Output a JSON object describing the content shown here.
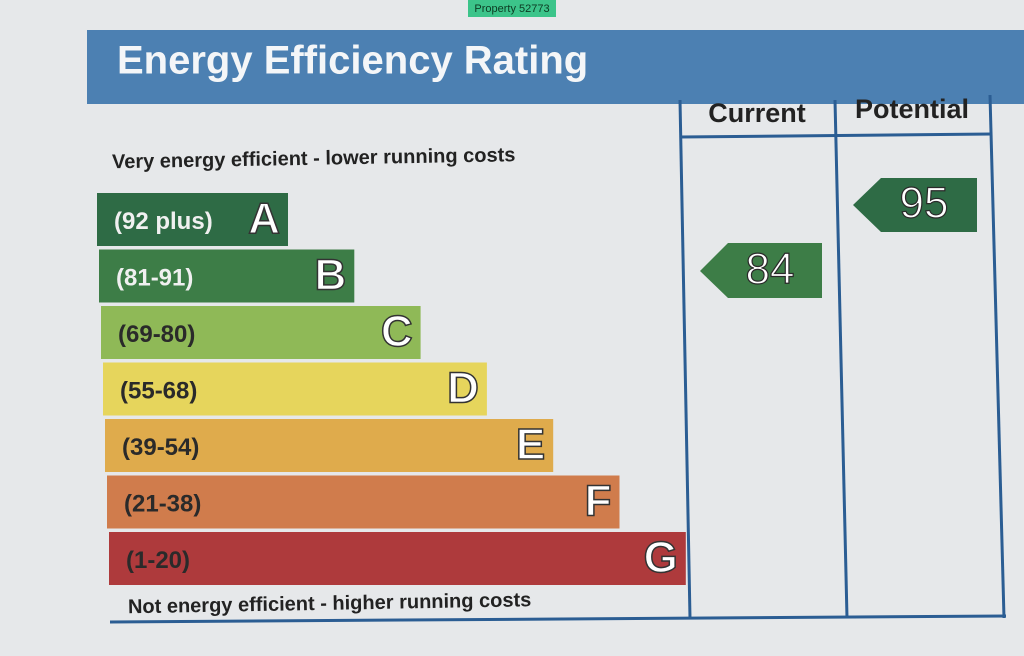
{
  "badge": "Property 52773",
  "title": "Energy Efficiency Rating",
  "columns": [
    "Current",
    "Potential"
  ],
  "top_note": "Very energy efficient - lower running costs",
  "bottom_note": "Not energy efficient - higher running costs",
  "bands": [
    {
      "range": "(92 plus)",
      "letter": "A",
      "color": "#2e6b45"
    },
    {
      "range": "(81-91)",
      "letter": "B",
      "color": "#3d7d47"
    },
    {
      "range": "(69-80)",
      "letter": "C",
      "color": "#8fb957"
    },
    {
      "range": "(55-68)",
      "letter": "D",
      "color": "#e6d55c"
    },
    {
      "range": "(39-54)",
      "letter": "E",
      "color": "#dfab4c"
    },
    {
      "range": "(21-38)",
      "letter": "F",
      "color": "#d07c4c"
    },
    {
      "range": "(1-20)",
      "letter": "G",
      "color": "#ae3a3c"
    }
  ],
  "current": "84",
  "potential": "95"
}
